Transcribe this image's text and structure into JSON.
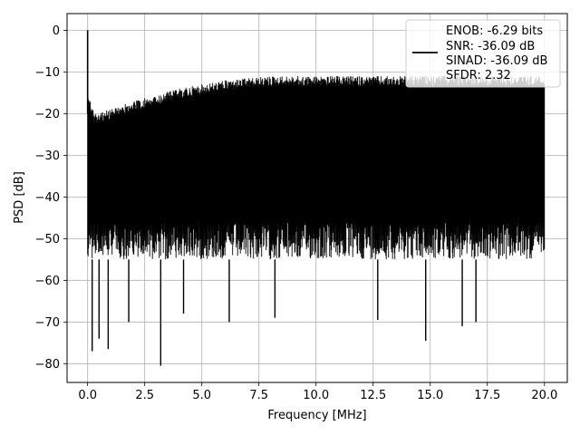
{
  "chart_data": {
    "type": "line",
    "title": "",
    "xlabel": "Frequency [MHz]",
    "ylabel": "PSD [dB]",
    "xlim": [
      -0.9,
      21.0
    ],
    "ylim": [
      -84.5,
      4.0
    ],
    "grid": true,
    "xticks": [
      0.0,
      2.5,
      5.0,
      7.5,
      10.0,
      12.5,
      15.0,
      17.5,
      20.0
    ],
    "xtick_labels": [
      "0.0",
      "2.5",
      "5.0",
      "7.5",
      "10.0",
      "12.5",
      "15.0",
      "17.5",
      "20.0"
    ],
    "yticks": [
      0,
      -10,
      -20,
      -30,
      -40,
      -50,
      -60,
      -70,
      -80
    ],
    "ytick_labels": [
      "0",
      "−10",
      "−20",
      "−30",
      "−40",
      "−50",
      "−60",
      "−70",
      "−80"
    ],
    "legend": {
      "placement": "top-right",
      "line_color": "#000000",
      "lines": [
        "ENOB: -6.29 bits",
        "SNR: -36.09 dB",
        "SINAD: -36.09 dB",
        "SFDR: 2.32"
      ]
    },
    "series": [
      {
        "color": "#000000",
        "frequency_range_mhz": [
          0.0,
          20.0
        ],
        "carrier_peak": {
          "x": 0.0,
          "y": 0.0
        },
        "upper_envelope": {
          "x": [
            0.0,
            0.3,
            1.0,
            2.0,
            3.0,
            4.0,
            5.0,
            6.0,
            7.0,
            8.0,
            9.0,
            10.0,
            11.0,
            12.0,
            13.0,
            14.0,
            15.0,
            16.0,
            17.0,
            18.0,
            19.0,
            20.0
          ],
          "y": [
            -15,
            -20,
            -19,
            -17,
            -15.5,
            -14,
            -13,
            -12,
            -11.5,
            -11,
            -11,
            -11,
            -11,
            -11,
            -11,
            -11,
            -11,
            -11,
            -11,
            -11,
            -11,
            -11
          ]
        },
        "typical_floor_db": -50,
        "notable_dips": [
          {
            "x": 0.2,
            "y": -77
          },
          {
            "x": 0.5,
            "y": -74
          },
          {
            "x": 0.9,
            "y": -76.5
          },
          {
            "x": 1.8,
            "y": -70
          },
          {
            "x": 3.2,
            "y": -80.5
          },
          {
            "x": 4.2,
            "y": -68
          },
          {
            "x": 6.2,
            "y": -70
          },
          {
            "x": 8.2,
            "y": -69
          },
          {
            "x": 12.7,
            "y": -69.5
          },
          {
            "x": 14.8,
            "y": -74.5
          },
          {
            "x": 16.4,
            "y": -71
          },
          {
            "x": 17.0,
            "y": -70
          }
        ]
      }
    ]
  }
}
